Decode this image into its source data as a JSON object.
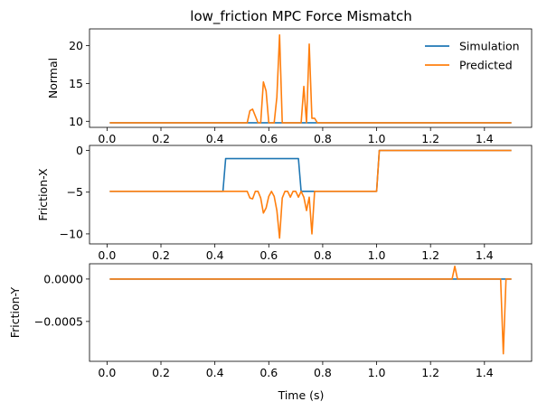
{
  "chart_data": {
    "type": "line",
    "title": "low_friction MPC Force Mismatch",
    "xlabel": "Time (s)",
    "legend": {
      "placement": "top-right",
      "entries": [
        {
          "name": "Simulation",
          "color": "#1f77b4"
        },
        {
          "name": "Predicted",
          "color": "#ff7f0e"
        }
      ]
    },
    "panels": [
      {
        "ylabel": "Normal",
        "xlim": [
          -0.065,
          1.575
        ],
        "ylim": [
          9.2,
          22.2
        ],
        "xticks": [
          0.0,
          0.2,
          0.4,
          0.6,
          0.8,
          1.0,
          1.2,
          1.4
        ],
        "xtick_labels": [
          "0.0",
          "0.2",
          "0.4",
          "0.6",
          "0.8",
          "1.0",
          "1.2",
          "1.4"
        ],
        "yticks": [
          10,
          15,
          20
        ],
        "ytick_labels": [
          "10",
          "15",
          "20"
        ],
        "show_legend": true,
        "series": [
          {
            "name": "Simulation",
            "color": "#1f77b4",
            "x": [
              0.01,
              1.0,
              1.5
            ],
            "y": [
              9.81,
              9.81,
              9.81
            ]
          },
          {
            "name": "Predicted",
            "color": "#ff7f0e",
            "x": [
              0.01,
              0.52,
              0.53,
              0.54,
              0.56,
              0.57,
              0.58,
              0.59,
              0.6,
              0.62,
              0.63,
              0.64,
              0.65,
              0.66,
              0.7,
              0.72,
              0.73,
              0.74,
              0.75,
              0.76,
              0.77,
              0.78,
              1.0,
              1.5
            ],
            "y": [
              9.81,
              9.81,
              11.4,
              11.6,
              9.81,
              9.81,
              15.2,
              14.0,
              9.81,
              9.81,
              13.2,
              21.4,
              9.81,
              9.81,
              9.81,
              9.81,
              14.6,
              9.81,
              20.2,
              10.4,
              10.4,
              9.81,
              9.81,
              9.81
            ]
          }
        ]
      },
      {
        "ylabel": "Friction-X",
        "xlim": [
          -0.065,
          1.575
        ],
        "ylim": [
          -11.2,
          0.6
        ],
        "xticks": [
          0.0,
          0.2,
          0.4,
          0.6,
          0.8,
          1.0,
          1.2,
          1.4
        ],
        "xtick_labels": [
          "0.0",
          "0.2",
          "0.4",
          "0.6",
          "0.8",
          "1.0",
          "1.2",
          "1.4"
        ],
        "yticks": [
          0,
          -5,
          -10
        ],
        "ytick_labels": [
          "0",
          "−5",
          "−10"
        ],
        "show_legend": false,
        "series": [
          {
            "name": "Simulation",
            "color": "#1f77b4",
            "x": [
              0.01,
              0.43,
              0.44,
              0.71,
              0.72,
              1.0,
              1.01,
              1.5
            ],
            "y": [
              -4.905,
              -4.905,
              -0.98,
              -0.98,
              -4.905,
              -4.905,
              0.0,
              0.0
            ]
          },
          {
            "name": "Predicted",
            "color": "#ff7f0e",
            "x": [
              0.01,
              0.52,
              0.53,
              0.54,
              0.55,
              0.56,
              0.57,
              0.58,
              0.59,
              0.6,
              0.61,
              0.62,
              0.63,
              0.64,
              0.65,
              0.66,
              0.67,
              0.68,
              0.69,
              0.7,
              0.71,
              0.72,
              0.73,
              0.74,
              0.75,
              0.76,
              0.77,
              0.78,
              1.0,
              1.01,
              1.5
            ],
            "y": [
              -4.905,
              -4.905,
              -5.7,
              -5.8,
              -4.905,
              -4.905,
              -5.7,
              -7.5,
              -6.9,
              -5.5,
              -4.905,
              -5.5,
              -7.2,
              -10.5,
              -5.7,
              -4.905,
              -4.905,
              -5.6,
              -4.905,
              -4.905,
              -5.6,
              -4.905,
              -5.6,
              -7.2,
              -5.6,
              -10.0,
              -4.905,
              -4.905,
              -4.905,
              0.0,
              0.0
            ]
          }
        ]
      },
      {
        "ylabel": "Friction-Y",
        "xlim": [
          -0.065,
          1.575
        ],
        "ylim": [
          -0.00097,
          0.00018
        ],
        "xticks": [
          0.0,
          0.2,
          0.4,
          0.6,
          0.8,
          1.0,
          1.2,
          1.4
        ],
        "xtick_labels": [
          "0.0",
          "0.2",
          "0.4",
          "0.6",
          "0.8",
          "1.0",
          "1.2",
          "1.4"
        ],
        "yticks": [
          0.0,
          -0.0005
        ],
        "ytick_labels": [
          "0.0000",
          "−0.0005"
        ],
        "show_legend": false,
        "series": [
          {
            "name": "Simulation",
            "color": "#1f77b4",
            "x": [
              0.01,
              1.5
            ],
            "y": [
              0.0,
              0.0
            ]
          },
          {
            "name": "Predicted",
            "color": "#ff7f0e",
            "x": [
              0.01,
              1.28,
              1.29,
              1.3,
              1.46,
              1.47,
              1.48,
              1.5
            ],
            "y": [
              0.0,
              0.0,
              0.00015,
              0.0,
              0.0,
              -0.00088,
              0.0,
              0.0
            ]
          }
        ]
      }
    ]
  }
}
